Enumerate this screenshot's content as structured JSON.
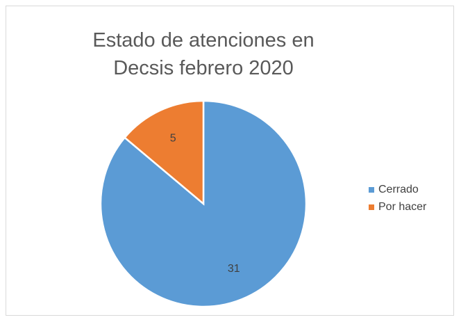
{
  "chart_data": {
    "type": "pie",
    "title": "Estado de atenciones en Decsis febrero 2020",
    "categories": [
      "Cerrado",
      "Por hacer"
    ],
    "values": [
      31,
      5
    ],
    "colors": [
      "#5b9bd5",
      "#ed7d31"
    ],
    "legend": "right"
  }
}
